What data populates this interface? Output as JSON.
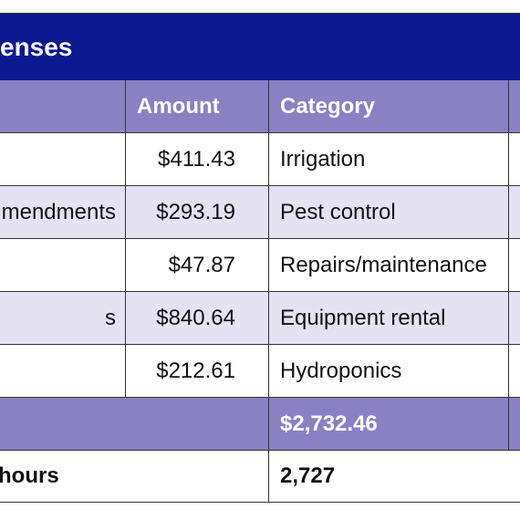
{
  "header": {
    "title": "enses"
  },
  "table": {
    "columns": [
      "Amount",
      "Category"
    ],
    "rows": [
      {
        "amount": "$411.43",
        "category": "Irrigation"
      },
      {
        "label": "mendments",
        "amount": "$293.19",
        "category": "Pest control"
      },
      {
        "amount": "$47.87",
        "category": "Repairs/maintenance"
      },
      {
        "label": "s",
        "amount": "$840.64",
        "category": "Equipment rental"
      },
      {
        "amount": "$212.61",
        "category": "Hydroponics"
      }
    ],
    "total": "$2,732.46",
    "hours": {
      "label": "hours",
      "value": "2,727"
    }
  }
}
